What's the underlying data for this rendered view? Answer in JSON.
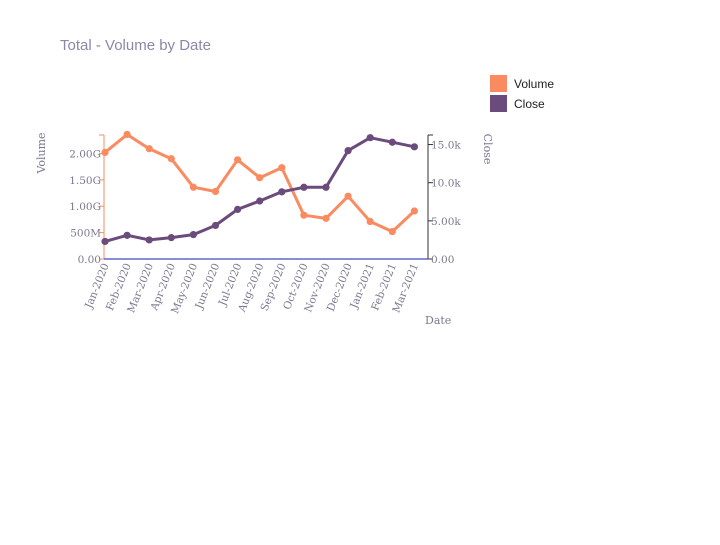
{
  "chart_data": {
    "type": "line",
    "title": "Total - Volume by Date",
    "xlabel": "Date",
    "ylabel": "Volume",
    "y2label": "Close",
    "categories": [
      "Jan-2020",
      "Feb-2020",
      "Mar-2020",
      "Apr-2020",
      "May-2020",
      "Jun-2020",
      "Jul-2020",
      "Aug-2020",
      "Sep-2020",
      "Oct-2020",
      "Nov-2020",
      "Dec-2020",
      "Jan-2021",
      "Feb-2021",
      "Mar-2021"
    ],
    "ylim": [
      0,
      2350000000
    ],
    "y2lim": [
      0,
      16250
    ],
    "y_ticks": [
      {
        "value": 0,
        "label": "0.00"
      },
      {
        "value": 500000000,
        "label": "500M"
      },
      {
        "value": 1000000000,
        "label": "1.00G"
      },
      {
        "value": 1500000000,
        "label": "1.50G"
      },
      {
        "value": 2000000000,
        "label": "2.00G"
      }
    ],
    "y2_ticks": [
      {
        "value": 0,
        "label": "0.00"
      },
      {
        "value": 5000,
        "label": "5.00k"
      },
      {
        "value": 10000,
        "label": "10.0k"
      },
      {
        "value": 15000,
        "label": "15.0k"
      }
    ],
    "series": [
      {
        "name": "Volume",
        "axis": "left",
        "color": "#fa8b60",
        "values": [
          2020000000,
          2360000000,
          2090000000,
          1900000000,
          1360000000,
          1280000000,
          1880000000,
          1540000000,
          1730000000,
          830000000,
          770000000,
          1190000000,
          710000000,
          520000000,
          910000000
        ]
      },
      {
        "name": "Close",
        "axis": "right",
        "color": "#6b4a7c",
        "values": [
          2300,
          3100,
          2500,
          2800,
          3200,
          4400,
          6500,
          7600,
          8800,
          9400,
          9400,
          14200,
          15900,
          15300,
          14700
        ]
      }
    ],
    "legend_position": "top-right",
    "grid": false
  }
}
